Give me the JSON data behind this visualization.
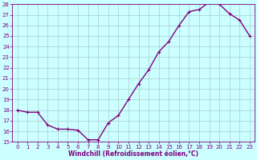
{
  "x": [
    0,
    1,
    2,
    3,
    4,
    5,
    6,
    7,
    8,
    9,
    10,
    11,
    12,
    13,
    14,
    15,
    16,
    17,
    18,
    19,
    20,
    21,
    22,
    23
  ],
  "y": [
    18.0,
    17.8,
    17.8,
    16.6,
    16.2,
    16.2,
    16.1,
    15.2,
    15.2,
    16.8,
    17.5,
    19.0,
    20.5,
    21.8,
    23.5,
    24.5,
    26.0,
    27.3,
    27.5,
    28.2,
    28.0,
    27.1,
    26.5,
    25.0
  ],
  "line_color": "#800080",
  "marker": "+",
  "xlabel": "Windchill (Refroidissement éolien,°C)",
  "xlabel_color": "#800080",
  "bg_color": "#ccffff",
  "grid_color": "#aacccc",
  "tick_color": "#800080",
  "spine_color": "#800080",
  "ylim": [
    15,
    28
  ],
  "xlim": [
    -0.5,
    23.5
  ],
  "yticks": [
    15,
    16,
    17,
    18,
    19,
    20,
    21,
    22,
    23,
    24,
    25,
    26,
    27,
    28
  ],
  "xticks": [
    0,
    1,
    2,
    3,
    4,
    5,
    6,
    7,
    8,
    9,
    10,
    11,
    12,
    13,
    14,
    15,
    16,
    17,
    18,
    19,
    20,
    21,
    22,
    23
  ],
  "tick_fontsize": 5.0,
  "xlabel_fontsize": 5.5,
  "linewidth": 1.0,
  "markersize": 3.5,
  "markeredgewidth": 0.8
}
